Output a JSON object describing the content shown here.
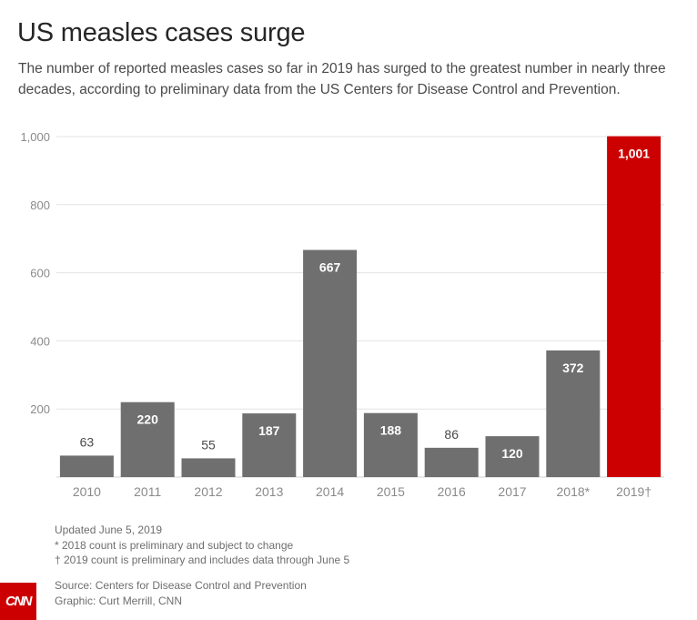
{
  "header": {
    "title": "US measles cases surge",
    "subtitle": "The number of reported measles cases so far in 2019 has surged to the greatest number in nearly three decades, according to preliminary data from the US Centers for Disease Control and Prevention."
  },
  "chart_data": {
    "type": "bar",
    "title": "US measles cases surge",
    "xlabel": "",
    "ylabel": "",
    "ylim": [
      0,
      1000
    ],
    "yticks": [
      200,
      400,
      600,
      800,
      1000
    ],
    "ytick_labels": [
      "200",
      "400",
      "600",
      "800",
      "1,000"
    ],
    "grid": true,
    "categories": [
      "2010",
      "2011",
      "2012",
      "2013",
      "2014",
      "2015",
      "2016",
      "2017",
      "2018*",
      "2019†"
    ],
    "values": [
      63,
      220,
      55,
      187,
      667,
      188,
      86,
      120,
      372,
      1001
    ],
    "value_labels": [
      "63",
      "220",
      "55",
      "187",
      "667",
      "188",
      "86",
      "120",
      "372",
      "1,001"
    ],
    "highlight_index": 9,
    "colors": {
      "bar": "#6f6f6f",
      "highlight": "#cc0000",
      "grid": "#e3e3e3",
      "axis_text": "#8a8a8a"
    }
  },
  "footnotes": {
    "updated": "Updated June 5, 2019",
    "note_2018": "* 2018 count is preliminary and subject to change",
    "note_2019": "† 2019 count is preliminary and includes data through June 5"
  },
  "credits": {
    "source": "Source: Centers for Disease Control and Prevention",
    "graphic": "Graphic: Curt Merrill, CNN"
  },
  "logo": {
    "text": "CNN",
    "color": "#cc0000"
  }
}
